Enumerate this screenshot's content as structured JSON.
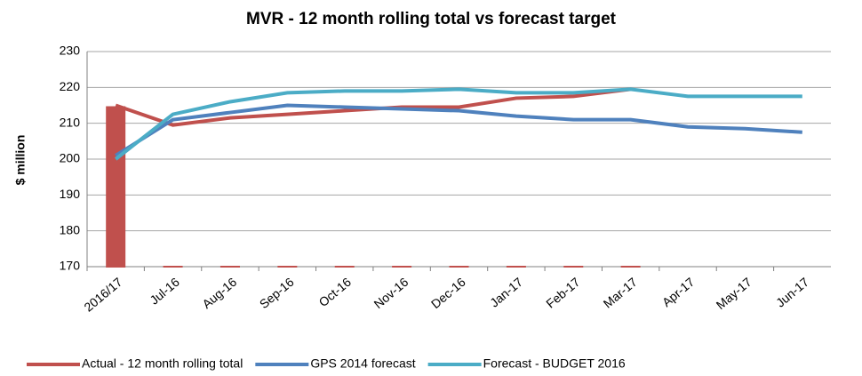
{
  "chart_data": {
    "type": "line",
    "title": "MVR - 12 month rolling total vs forecast  target",
    "y_label": "$ million",
    "categories": [
      "2016/17",
      "Jul-16",
      "Aug-16",
      "Sep-16",
      "Oct-16",
      "Nov-16",
      "Dec-16",
      "Jan-17",
      "Feb-17",
      "Mar-17",
      "Apr-17",
      "May-17",
      "Jun-17"
    ],
    "series": [
      {
        "name": "Actual - 12 month rolling total",
        "color": "#c0504d",
        "values": [
          215,
          209.5,
          211.5,
          212.5,
          213.5,
          214.5,
          214.5,
          217,
          217.5,
          219.5,
          null,
          null,
          null
        ]
      },
      {
        "name": "GPS 2014 forecast",
        "color": "#4f81bd",
        "values": [
          201,
          211,
          213,
          215,
          214.5,
          214,
          213.5,
          212,
          211,
          211,
          209,
          208.5,
          207.5
        ]
      },
      {
        "name": "Forecast - BUDGET 2016",
        "color": "#4bacc6",
        "values": [
          200,
          212.5,
          216,
          218.5,
          219,
          219,
          219.5,
          218.5,
          218.5,
          219.5,
          217.5,
          217.5,
          217.5
        ]
      },
      {
        "type": "bar",
        "color": "#c0504d",
        "values": [
          214.5,
          170,
          170,
          170,
          170,
          170,
          170,
          170,
          170,
          170,
          null,
          null,
          null
        ]
      }
    ],
    "ylim": [
      170,
      230
    ],
    "yticks": [
      170,
      180,
      190,
      200,
      210,
      220,
      230
    ],
    "grid": true
  }
}
